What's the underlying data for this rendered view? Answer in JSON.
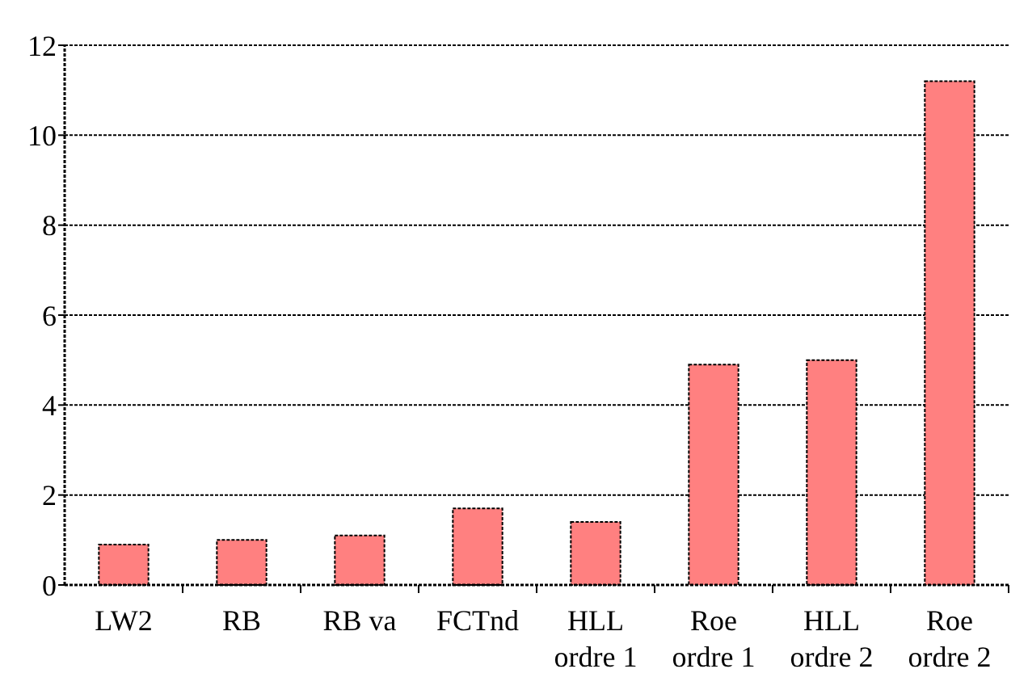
{
  "chart_data": {
    "type": "bar",
    "categories": [
      "LW2",
      "RB",
      "RB va",
      "FCTnd",
      "HLL ordre 1",
      "Roe ordre 1",
      "HLL ordre 2",
      "Roe ordre 2"
    ],
    "values": [
      0.9,
      1.0,
      1.1,
      1.7,
      1.4,
      4.9,
      5.0,
      11.2
    ],
    "color": "#ff8080",
    "ylim": [
      0,
      12
    ],
    "yticks": [
      0,
      2,
      4,
      6,
      8,
      10,
      12
    ],
    "grid": "y"
  }
}
